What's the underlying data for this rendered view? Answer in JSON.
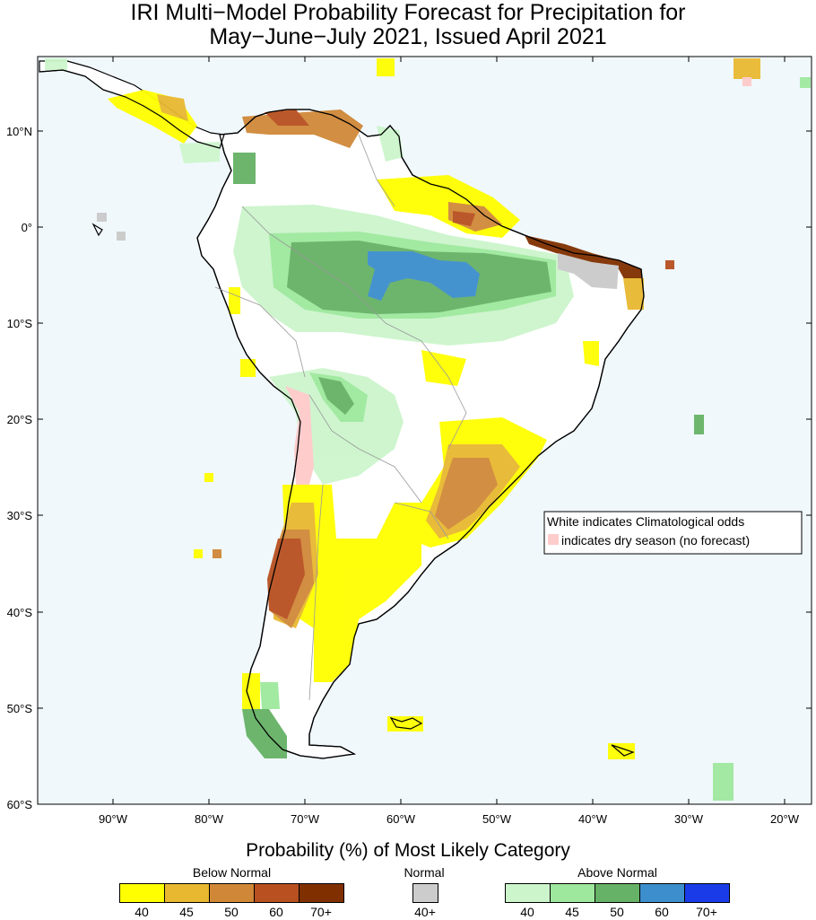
{
  "title_line1": "IRI Multi−Model Probability Forecast for Precipitation for",
  "title_line2": "May−June−July 2021, Issued April 2021",
  "lat_labels": [
    "10°N",
    "0°",
    "10°S",
    "20°S",
    "30°S",
    "40°S",
    "50°S",
    "60°S"
  ],
  "lon_labels": [
    "90°W",
    "80°W",
    "70°W",
    "60°W",
    "50°W",
    "40°W",
    "30°W",
    "20°W"
  ],
  "legend_box": {
    "line1": "White indicates Climatological odds",
    "line2": "indicates dry season (no forecast)"
  },
  "colorbar_title": "Probability (%) of Most Likely Category",
  "categories": {
    "below": {
      "title": "Below Normal",
      "labels": [
        "40",
        "45",
        "50",
        "60",
        "70+"
      ],
      "colors": [
        "#ffff00",
        "#e8b830",
        "#d08838",
        "#b85020",
        "#803000"
      ]
    },
    "normal": {
      "title": "Normal",
      "labels": [
        "40+"
      ],
      "colors": [
        "#cccccc"
      ]
    },
    "above": {
      "title": "Above Normal",
      "labels": [
        "40",
        "45",
        "50",
        "60",
        "70+"
      ],
      "colors": [
        "#ccf5cc",
        "#9ee89e",
        "#66b266",
        "#3c8ecc",
        "#1a3ce8"
      ]
    }
  },
  "colors": {
    "ocean": "#f0f8fc",
    "land": "#ffffff",
    "dry_season": "#ffcccc",
    "coast": "#000000"
  }
}
